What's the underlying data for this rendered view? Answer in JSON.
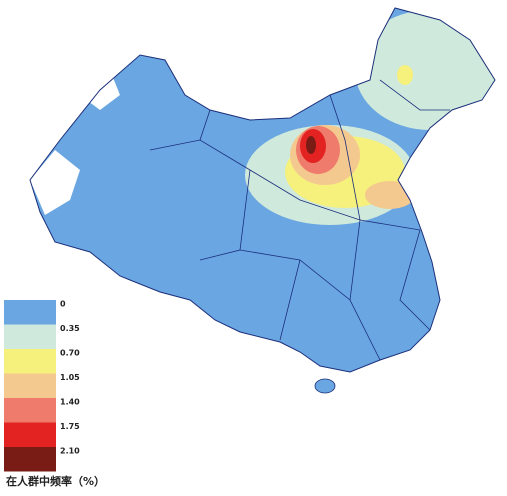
{
  "legend": {
    "title": "在人群中频率（%）",
    "items": [
      {
        "label": "0",
        "color": "#6aa6e2"
      },
      {
        "label": "0.35",
        "color": "#cfe9dc"
      },
      {
        "label": "0.70",
        "color": "#f6f07c"
      },
      {
        "label": "1.05",
        "color": "#f4c98f"
      },
      {
        "label": "1.40",
        "color": "#ef7b6c"
      },
      {
        "label": "1.75",
        "color": "#e32222"
      },
      {
        "label": "2.10",
        "color": "#7a1c16"
      }
    ]
  }
}
